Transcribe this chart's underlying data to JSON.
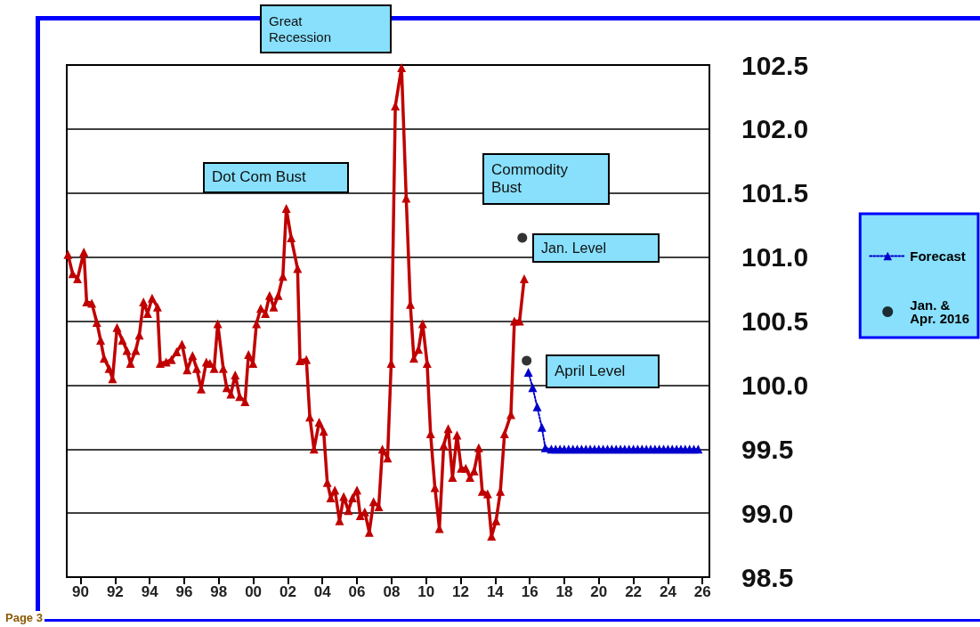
{
  "chart_data": {
    "type": "line",
    "series": [
      {
        "color": "#c00000",
        "line_style": "solid",
        "x": [
          1989.27,
          1989.54,
          1989.82,
          1990.19,
          1990.35,
          1990.65,
          1990.94,
          1991.16,
          1991.36,
          1991.65,
          1991.85,
          1992.11,
          1992.42,
          1992.68,
          1992.89,
          1993.19,
          1993.4,
          1993.64,
          1993.88,
          1994.14,
          1994.45,
          1994.61,
          1994.95,
          1995.26,
          1995.56,
          1995.87,
          1996.17,
          1996.48,
          1996.72,
          1996.98,
          1997.28,
          1997.49,
          1997.73,
          1997.94,
          1998.26,
          1998.46,
          1998.7,
          1998.95,
          1999.21,
          1999.52,
          1999.72,
          1999.98,
          2000.18,
          2000.43,
          2000.7,
          2000.94,
          2001.18,
          2001.44,
          2001.71,
          2001.91,
          2002.19,
          2002.56,
          2002.7,
          2003.07,
          2003.27,
          2003.51,
          2003.81,
          2004.07,
          2004.28,
          2004.48,
          2004.72,
          2004.99,
          2005.23,
          2005.5,
          2005.74,
          2006.0,
          2006.19,
          2006.45,
          2006.71,
          2006.96,
          2007.26,
          2007.47,
          2007.77,
          2007.98,
          2008.22,
          2008.58,
          2008.85,
          2009.09,
          2009.29,
          2009.56,
          2009.8,
          2010.06,
          2010.26,
          2010.51,
          2010.77,
          2011.02,
          2011.28,
          2011.53,
          2011.79,
          2012.03,
          2012.3,
          2012.54,
          2012.78,
          2013.05,
          2013.25,
          2013.56,
          2013.79,
          2014.05,
          2014.3,
          2014.54,
          2014.91,
          2015.11,
          2015.41,
          2015.68
        ],
        "values": [
          101.02,
          100.87,
          100.83,
          101.04,
          100.65,
          100.64,
          100.49,
          100.35,
          100.21,
          100.13,
          100.05,
          100.45,
          100.35,
          100.27,
          100.17,
          100.27,
          100.39,
          100.65,
          100.56,
          100.68,
          100.61,
          100.17,
          100.18,
          100.2,
          100.26,
          100.32,
          100.12,
          100.23,
          100.13,
          99.97,
          100.18,
          100.17,
          100.13,
          100.48,
          100.13,
          99.98,
          99.93,
          100.08,
          99.91,
          99.87,
          100.24,
          100.17,
          100.48,
          100.6,
          100.56,
          100.7,
          100.61,
          100.7,
          100.85,
          101.38,
          101.15,
          100.91,
          100.19,
          100.2,
          99.75,
          99.5,
          99.71,
          99.64,
          99.24,
          99.12,
          99.18,
          98.94,
          99.13,
          99.02,
          99.12,
          99.18,
          98.98,
          99.01,
          98.85,
          99.09,
          99.05,
          99.5,
          99.43,
          100.17,
          102.18,
          102.48,
          101.46,
          100.63,
          100.21,
          100.28,
          100.48,
          100.17,
          99.62,
          99.2,
          98.88,
          99.53,
          99.66,
          99.28,
          99.61,
          99.35,
          99.35,
          99.28,
          99.33,
          99.51,
          99.17,
          99.15,
          98.82,
          98.94,
          99.17,
          99.62,
          99.77,
          100.5,
          100.5,
          100.83
        ]
      },
      {
        "name": "Forecast",
        "color": "#0000cc",
        "line_style": "dotted",
        "x": [
          2015.92,
          2016.17,
          2016.43,
          2016.7,
          2016.9,
          2017.25,
          2017.5,
          2017.75,
          2018,
          2018.25,
          2018.5,
          2018.75,
          2019,
          2019.25,
          2019.5,
          2019.75,
          2020,
          2020.25,
          2020.5,
          2020.75,
          2021,
          2021.25,
          2021.5,
          2021.75,
          2022,
          2022.25,
          2022.5,
          2022.75,
          2023,
          2023.25,
          2023.5,
          2023.75,
          2024,
          2024.25,
          2024.5,
          2024.75,
          2025,
          2025.25,
          2025.5,
          2025.75
        ],
        "values": [
          100.1,
          99.98,
          99.83,
          99.67,
          99.51,
          99.5,
          99.5,
          99.5,
          99.5,
          99.5,
          99.5,
          99.5,
          99.5,
          99.5,
          99.5,
          99.5,
          99.5,
          99.5,
          99.5,
          99.5,
          99.5,
          99.5,
          99.5,
          99.5,
          99.5,
          99.5,
          99.5,
          99.5,
          99.5,
          99.5,
          99.5,
          99.5,
          99.5,
          99.5,
          99.5,
          99.5,
          99.5,
          99.5,
          99.5,
          99.5
        ]
      },
      {
        "name": "Jan. & Apr. 2016",
        "type": "scatter",
        "marker": "circle",
        "color": "#000000",
        "x": [
          2015.57,
          2015.82
        ],
        "values": [
          101.15,
          100.19
        ]
      }
    ],
    "marker": "triangle",
    "xlim": [
      1989.2,
      2026.4
    ],
    "xticks": [
      {
        "value": 1990,
        "label": "90"
      },
      {
        "value": 1992,
        "label": "92"
      },
      {
        "value": 1994,
        "label": "94"
      },
      {
        "value": 1996,
        "label": "96"
      },
      {
        "value": 1998,
        "label": "98"
      },
      {
        "value": 2000,
        "label": "00"
      },
      {
        "value": 2002,
        "label": "02"
      },
      {
        "value": 2004,
        "label": "04"
      },
      {
        "value": 2006,
        "label": "06"
      },
      {
        "value": 2008,
        "label": "08"
      },
      {
        "value": 2010,
        "label": "10"
      },
      {
        "value": 2012,
        "label": "12"
      },
      {
        "value": 2014,
        "label": "14"
      },
      {
        "value": 2016,
        "label": "16"
      },
      {
        "value": 2018,
        "label": "18"
      },
      {
        "value": 2020,
        "label": "20"
      },
      {
        "value": 2022,
        "label": "22"
      },
      {
        "value": 2024,
        "label": "24"
      },
      {
        "value": 2026,
        "label": "26"
      }
    ],
    "ylim": [
      98.5,
      102.5
    ],
    "yticks": [
      {
        "value": 98.5,
        "label": "98.5"
      },
      {
        "value": 99,
        "label": "99.0"
      },
      {
        "value": 99.5,
        "label": "99.5"
      },
      {
        "value": 100,
        "label": "100.0"
      },
      {
        "value": 100.5,
        "label": "100.5"
      },
      {
        "value": 101,
        "label": "101.0"
      },
      {
        "value": 101.5,
        "label": "101.5"
      },
      {
        "value": 102,
        "label": "102.0"
      },
      {
        "value": 102.5,
        "label": "102.5"
      }
    ],
    "grid": "y",
    "legend": "right",
    "annotations": [
      "Great Recession",
      "Dot Com Bust",
      "Commodity Bust",
      "Jan. Level",
      "April  Level",
      "Page 3"
    ]
  }
}
